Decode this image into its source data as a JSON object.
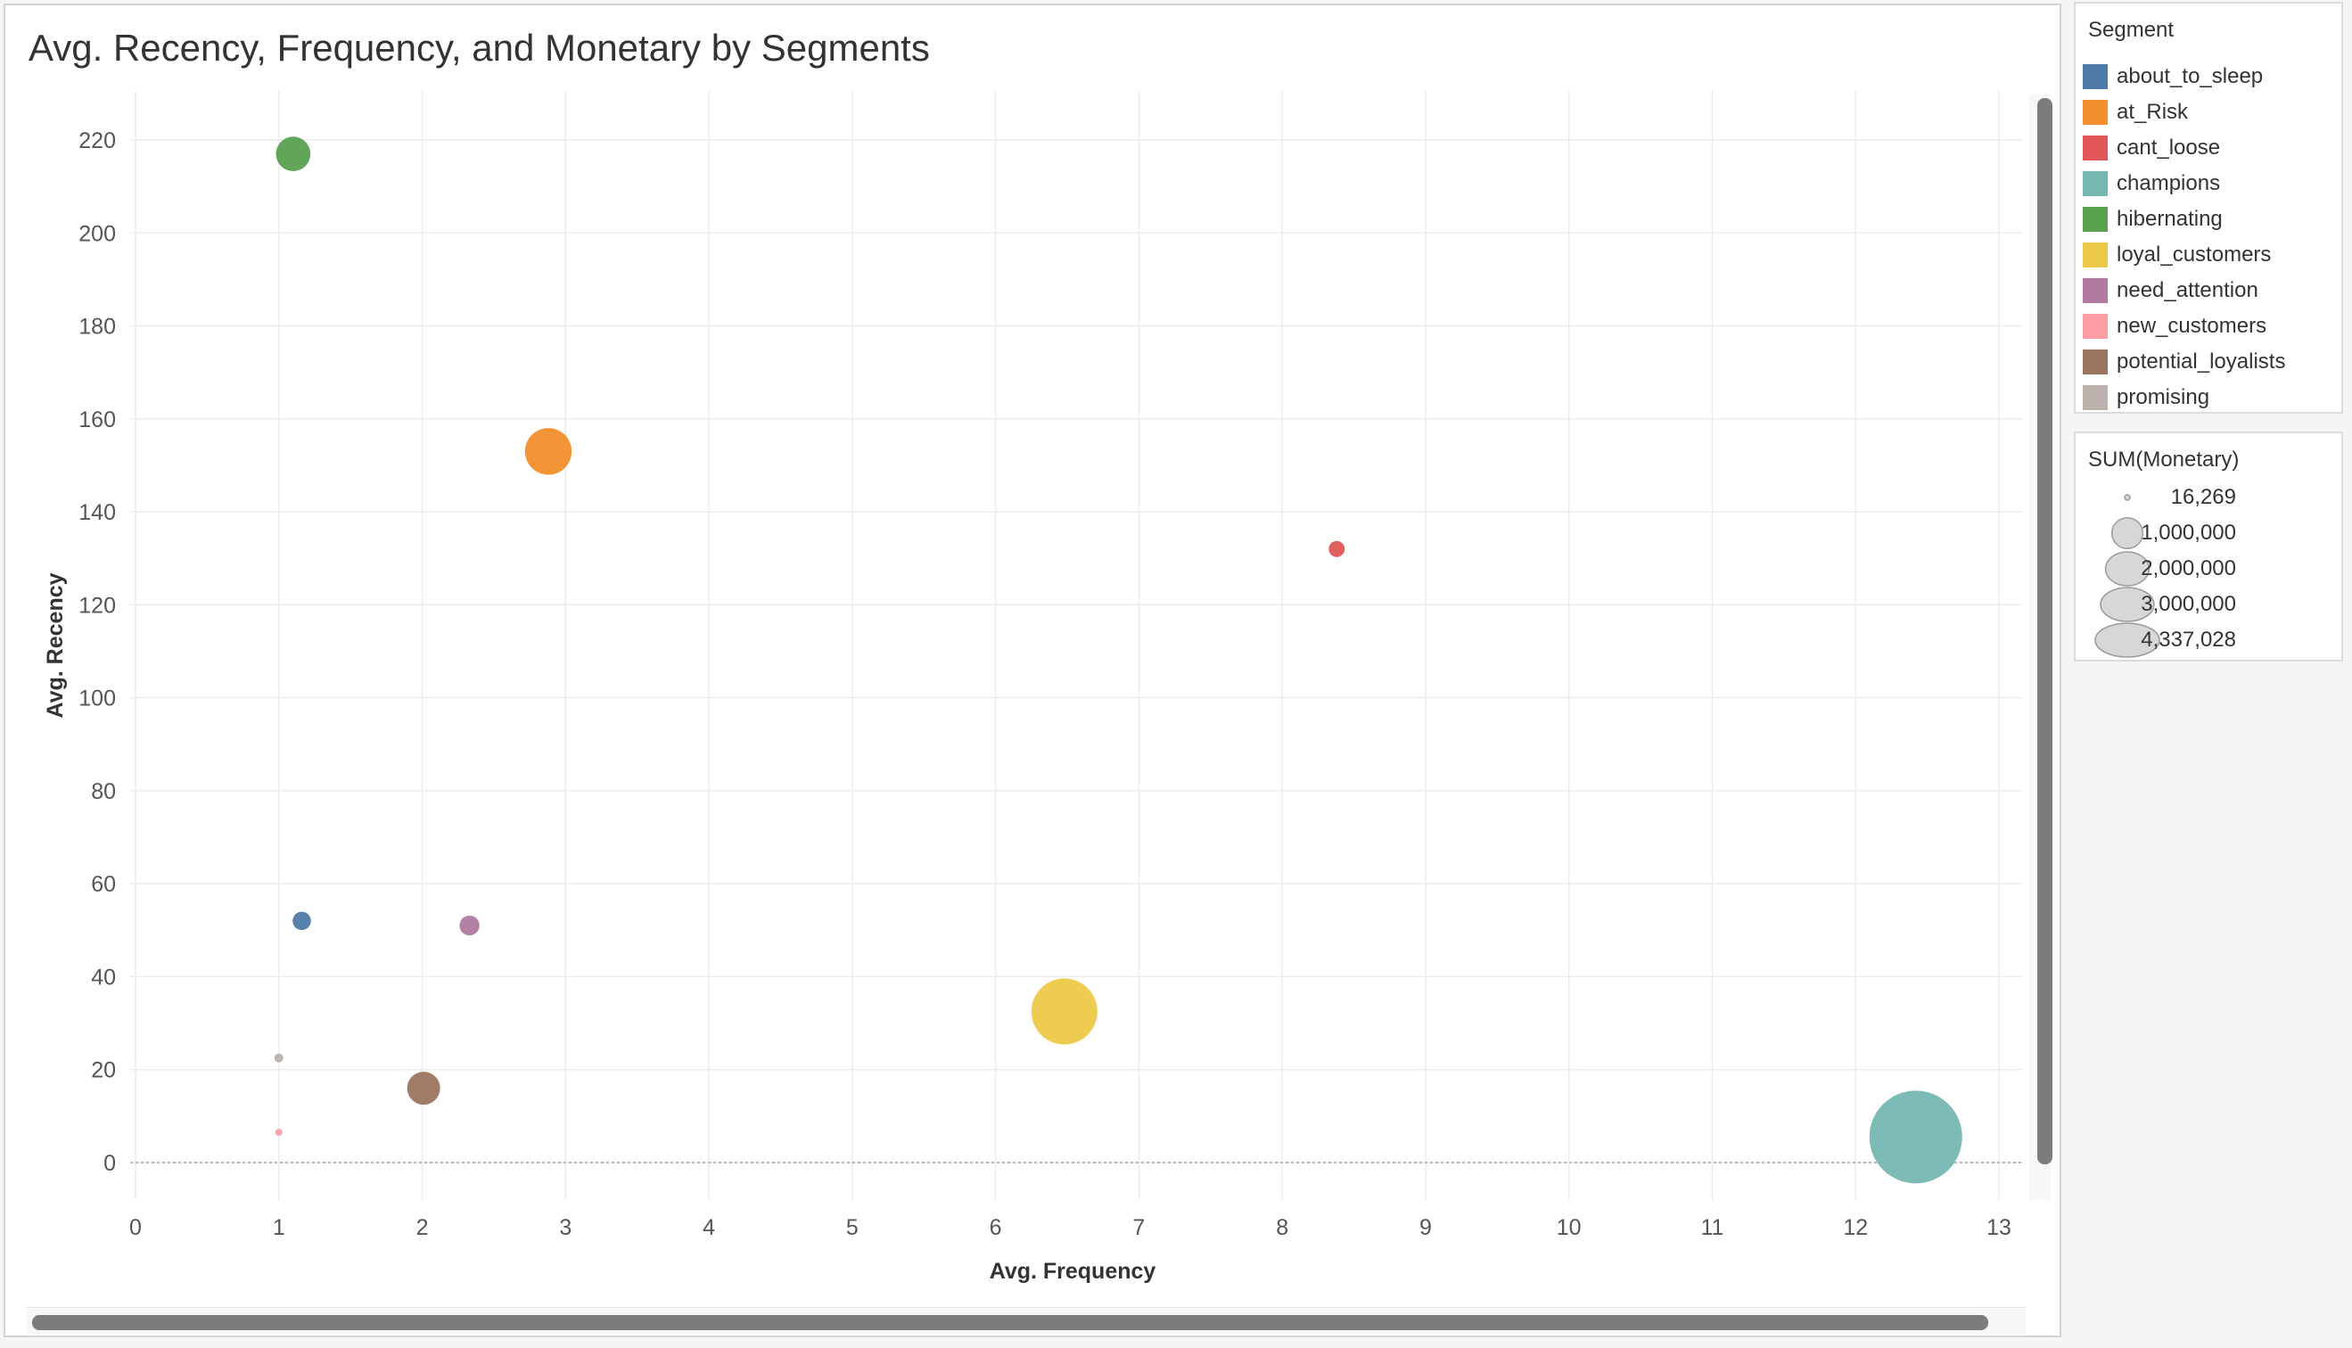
{
  "chart_data": {
    "type": "scatter",
    "title": "Avg. Recency, Frequency, and Monetary by Segments",
    "xlabel": "Avg. Frequency",
    "ylabel": "Avg. Recency",
    "xlim": [
      0,
      13
    ],
    "ylim": [
      -8,
      230
    ],
    "x_ticks": [
      0,
      1,
      2,
      3,
      4,
      5,
      6,
      7,
      8,
      9,
      10,
      11,
      12,
      13
    ],
    "y_ticks": [
      0,
      20,
      40,
      60,
      80,
      100,
      120,
      140,
      160,
      180,
      200,
      220
    ],
    "grid": true,
    "legend_placement": "right",
    "size_legend_title": "SUM(Monetary)",
    "size_legend_values": [
      "16,269",
      "1,000,000",
      "2,000,000",
      "3,000,000",
      "4,337,028"
    ],
    "size_legend_numbers": [
      16269,
      1000000,
      2000000,
      3000000,
      4337028
    ],
    "series_legend_title": "Segment",
    "series": [
      {
        "name": "about_to_sleep",
        "color": "#4e79a7",
        "x": 1.16,
        "y": 52,
        "monetary": 170000
      },
      {
        "name": "at_Risk",
        "color": "#f28e2b",
        "x": 2.88,
        "y": 153,
        "monetary": 1100000
      },
      {
        "name": "cant_loose",
        "color": "#e15759",
        "x": 8.38,
        "y": 132,
        "monetary": 130000
      },
      {
        "name": "champions",
        "color": "#76b7b2",
        "x": 12.42,
        "y": 5.5,
        "monetary": 4337028
      },
      {
        "name": "hibernating",
        "color": "#59a14f",
        "x": 1.1,
        "y": 217,
        "monetary": 600000
      },
      {
        "name": "loyal_customers",
        "color": "#edc948",
        "x": 6.48,
        "y": 32.5,
        "monetary": 2200000
      },
      {
        "name": "need_attention",
        "color": "#b07aa1",
        "x": 2.33,
        "y": 51,
        "monetary": 200000
      },
      {
        "name": "new_customers",
        "color": "#ff9da7",
        "x": 1.0,
        "y": 6.5,
        "monetary": 16269
      },
      {
        "name": "potential_loyalists",
        "color": "#9c755f",
        "x": 2.01,
        "y": 16,
        "monetary": 550000
      },
      {
        "name": "promising",
        "color": "#bab0ac",
        "x": 1.0,
        "y": 22.5,
        "monetary": 40000
      }
    ]
  }
}
